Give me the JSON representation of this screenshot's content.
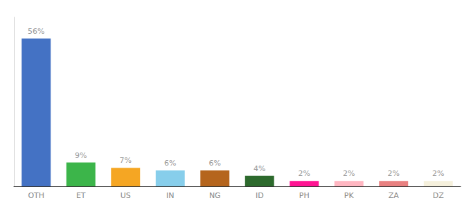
{
  "chart_data": {
    "type": "bar",
    "categories": [
      "OTH",
      "ET",
      "US",
      "IN",
      "NG",
      "ID",
      "PH",
      "PK",
      "ZA",
      "DZ"
    ],
    "values": [
      56,
      9,
      7,
      6,
      6,
      4,
      2,
      2,
      2,
      2
    ],
    "value_labels": [
      "56%",
      "9%",
      "7%",
      "6%",
      "6%",
      "4%",
      "2%",
      "2%",
      "2%",
      "2%"
    ],
    "colors": [
      "#4472c4",
      "#3cb54a",
      "#f5a623",
      "#87ceeb",
      "#b5651d",
      "#2d6a2d",
      "#ff1493",
      "#ffb6c1",
      "#e88080",
      "#f5f0dc"
    ],
    "ylim": [
      0,
      64
    ],
    "data_labels": true,
    "tick_labels": "x",
    "grid": false
  }
}
